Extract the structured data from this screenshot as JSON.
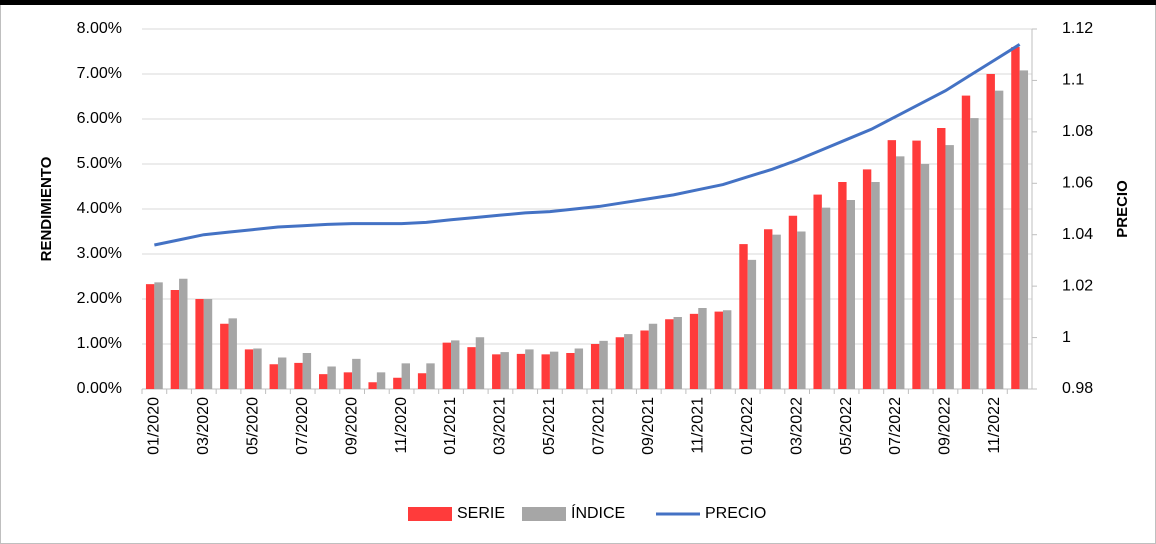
{
  "chart_data": {
    "type": "bar",
    "ylabel": "RENDIMIENTO",
    "y2label": "PRECIO",
    "categories": [
      "01/2020",
      null,
      "03/2020",
      null,
      "05/2020",
      null,
      "07/2020",
      null,
      "09/2020",
      null,
      "11/2020",
      null,
      "01/2021",
      null,
      "03/2021",
      null,
      "05/2021",
      null,
      "07/2021",
      null,
      "09/2021",
      null,
      "11/2021",
      null,
      "01/2022",
      null,
      "03/2022",
      null,
      "05/2022",
      null,
      "07/2022",
      null,
      "09/2022",
      null,
      "11/2022",
      null
    ],
    "series": [
      {
        "name": "SERIE",
        "type": "bar",
        "color": "#ff3b3b",
        "values": [
          2.33,
          2.2,
          2.0,
          1.45,
          0.88,
          0.55,
          0.58,
          0.33,
          0.37,
          0.15,
          0.25,
          0.35,
          1.03,
          0.93,
          0.77,
          0.78,
          0.77,
          0.8,
          1.0,
          1.15,
          1.3,
          1.55,
          1.67,
          1.72,
          3.22,
          3.55,
          3.85,
          4.32,
          4.6,
          4.88,
          5.53,
          5.52,
          5.8,
          6.52,
          7.0,
          7.6
        ]
      },
      {
        "name": "ÍNDICE",
        "type": "bar",
        "color": "#a6a6a6",
        "values": [
          2.37,
          2.45,
          2.0,
          1.57,
          0.9,
          0.7,
          0.8,
          0.5,
          0.67,
          0.37,
          0.57,
          0.57,
          1.08,
          1.15,
          0.82,
          0.88,
          0.83,
          0.9,
          1.07,
          1.22,
          1.45,
          1.6,
          1.8,
          1.75,
          2.87,
          3.43,
          3.5,
          4.03,
          4.2,
          4.6,
          5.17,
          5.0,
          5.42,
          6.02,
          6.63,
          7.08
        ]
      },
      {
        "name": "PRECIO",
        "type": "line",
        "axis": "y2",
        "color": "#4472c4",
        "values": [
          1.036,
          1.038,
          1.04,
          1.041,
          1.042,
          1.043,
          1.0435,
          1.044,
          1.0443,
          1.0443,
          1.0443,
          1.0448,
          1.0458,
          1.0467,
          1.0476,
          1.0485,
          1.049,
          1.05,
          1.051,
          1.0525,
          1.054,
          1.0555,
          1.0575,
          1.0595,
          1.0625,
          1.0655,
          1.069,
          1.073,
          1.077,
          1.081,
          1.086,
          1.091,
          1.096,
          1.102,
          1.108,
          1.114
        ]
      }
    ],
    "ylim": [
      0,
      8
    ],
    "yticks": [
      {
        "value": 0,
        "label": "0.00%"
      },
      {
        "value": 1,
        "label": "1.00%"
      },
      {
        "value": 2,
        "label": "2.00%"
      },
      {
        "value": 3,
        "label": "3.00%"
      },
      {
        "value": 4,
        "label": "4.00%"
      },
      {
        "value": 5,
        "label": "5.00%"
      },
      {
        "value": 6,
        "label": "6.00%"
      },
      {
        "value": 7,
        "label": "7.00%"
      },
      {
        "value": 8,
        "label": "8.00%"
      }
    ],
    "y2lim": [
      0.98,
      1.12
    ],
    "y2ticks": [
      0.98,
      1,
      1.02,
      1.04,
      1.06,
      1.08,
      1.1,
      1.12
    ],
    "grid": true
  }
}
